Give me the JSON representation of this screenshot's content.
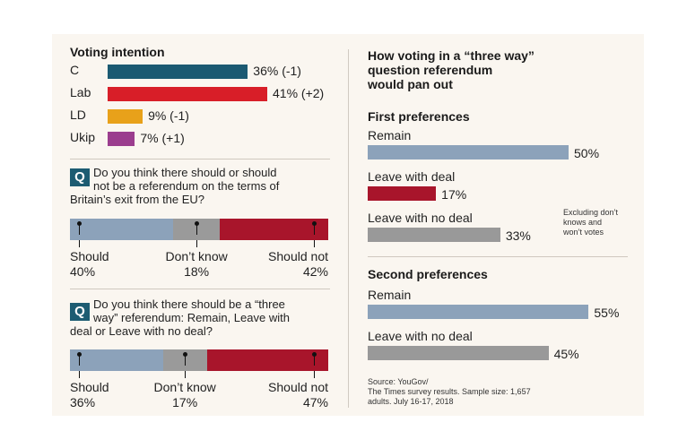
{
  "voting": {
    "title": "Voting intention",
    "rows": [
      {
        "party": "C",
        "value": 36,
        "label": "36% (-1)",
        "color": "#1b5a72"
      },
      {
        "party": "Lab",
        "value": 41,
        "label": "41% (+2)",
        "color": "#d81e28"
      },
      {
        "party": "LD",
        "value": 9,
        "label": "9% (-1)",
        "color": "#e8a11a"
      },
      {
        "party": "Ukip",
        "value": 7,
        "label": "7% (+1)",
        "color": "#9b3d8e"
      }
    ]
  },
  "q1": {
    "badge": "Q",
    "line1": "Do you think there should or should",
    "line2": "not be a referendum on the terms of",
    "line3": "Britain’s exit from the EU?",
    "segments": [
      {
        "label": "Should",
        "value_label": "40%",
        "value": 40,
        "color": "#8ca2ba"
      },
      {
        "label": "Don’t know",
        "value_label": "18%",
        "value": 18,
        "color": "#9a9a9a"
      },
      {
        "label": "Should not",
        "value_label": "42%",
        "value": 42,
        "color": "#a8152b"
      }
    ]
  },
  "q2": {
    "badge": "Q",
    "line1": "Do you think there should be a “three",
    "line2": "way” referendum: Remain, Leave with",
    "line3": "deal or Leave with no deal?",
    "segments": [
      {
        "label": "Should",
        "value_label": "36%",
        "value": 36,
        "color": "#8ca2ba"
      },
      {
        "label": "Don’t know",
        "value_label": "17%",
        "value": 17,
        "color": "#9a9a9a"
      },
      {
        "label": "Should not",
        "value_label": "47%",
        "value": 47,
        "color": "#a8152b"
      }
    ]
  },
  "right": {
    "title_line1": "How voting in a “three way”",
    "title_line2": "question referendum",
    "title_line3": "would pan out",
    "first_title": "First preferences",
    "first": [
      {
        "label": "Remain",
        "value": 50,
        "value_label": "50%",
        "color": "#8ca2ba"
      },
      {
        "label": "Leave with deal",
        "value": 17,
        "value_label": "17%",
        "color": "#a8152b"
      },
      {
        "label": "Leave with no deal",
        "value": 33,
        "value_label": "33%",
        "color": "#999999"
      }
    ],
    "note_line1": "Excluding don’t",
    "note_line2": "knows and",
    "note_line3": "won’t votes",
    "second_title": "Second preferences",
    "second": [
      {
        "label": "Remain",
        "value": 55,
        "value_label": "55%",
        "color": "#8ca2ba"
      },
      {
        "label": "Leave with no deal",
        "value": 45,
        "value_label": "45%",
        "color": "#999999"
      }
    ],
    "source_line1": "Source: YouGov/",
    "source_line2": "The Times survey results. Sample size: 1,657",
    "source_line3": "adults. July 16-17, 2018"
  },
  "chart_data": [
    {
      "type": "bar",
      "title": "Voting intention",
      "categories": [
        "C",
        "Lab",
        "LD",
        "Ukip"
      ],
      "values": [
        36,
        41,
        9,
        7
      ],
      "changes": [
        -1,
        2,
        -1,
        1
      ]
    },
    {
      "type": "bar",
      "title": "Do you think there should or should not be a referendum on the terms of Britain’s exit from the EU?",
      "categories": [
        "Should",
        "Don’t know",
        "Should not"
      ],
      "values": [
        40,
        18,
        42
      ]
    },
    {
      "type": "bar",
      "title": "Do you think there should be a “three way” referendum: Remain, Leave with deal or Leave with no deal?",
      "categories": [
        "Should",
        "Don’t know",
        "Should not"
      ],
      "values": [
        36,
        17,
        47
      ]
    },
    {
      "type": "bar",
      "title": "First preferences",
      "categories": [
        "Remain",
        "Leave with deal",
        "Leave with no deal"
      ],
      "values": [
        50,
        17,
        33
      ]
    },
    {
      "type": "bar",
      "title": "Second preferences",
      "categories": [
        "Remain",
        "Leave with no deal"
      ],
      "values": [
        55,
        45
      ]
    }
  ]
}
